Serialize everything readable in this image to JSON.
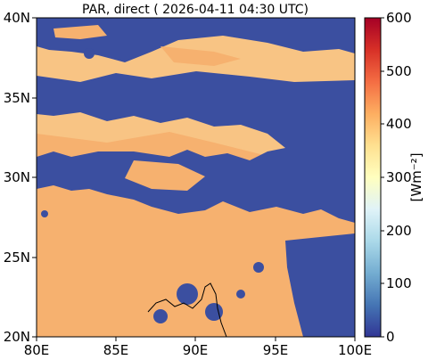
{
  "title": "PAR, direct ( 2026-04-11 04:30 UTC)",
  "map": {
    "x_ticks": [
      "80E",
      "85E",
      "90E",
      "95E",
      "100E"
    ],
    "y_ticks": [
      "40N",
      "35N",
      "30N",
      "25N",
      "20N"
    ],
    "lon_range": [
      80,
      100
    ],
    "lat_range": [
      20,
      40
    ]
  },
  "colorbar": {
    "label": "[Wm⁻²]",
    "ticks": [
      "600",
      "500",
      "400",
      "300",
      "200",
      "100",
      "0"
    ],
    "range": [
      0,
      600
    ],
    "colors": [
      "#313695",
      "#4575b4",
      "#74add1",
      "#abd9e9",
      "#e0f3f8",
      "#ffffbf",
      "#fee090",
      "#fdae61",
      "#f46d43",
      "#d73027",
      "#a50026"
    ]
  },
  "field_colors": {
    "low": "#3b4fa0",
    "mid": "#f6b16f",
    "high": "#f8c484"
  }
}
